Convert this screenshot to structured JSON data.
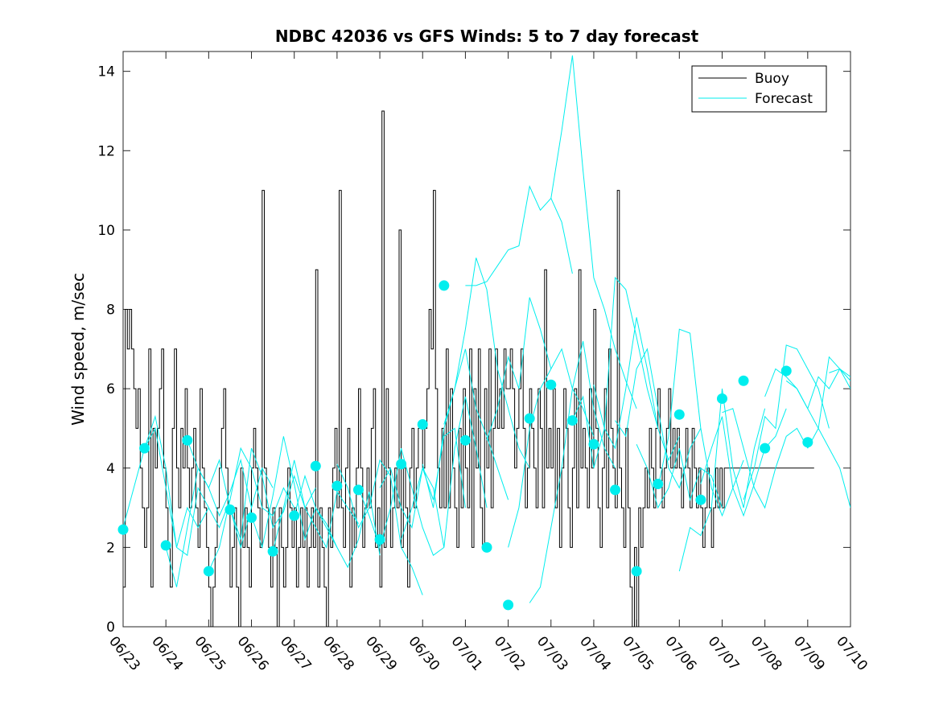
{
  "chart_data": {
    "type": "line",
    "title": "NDBC 42036 vs GFS Winds: 5 to 7 day forecast",
    "ylabel": "Wind speed, m/sec",
    "xlabel": "",
    "ylim": [
      0,
      14.5
    ],
    "yticks": [
      0,
      2,
      4,
      6,
      8,
      10,
      12,
      14
    ],
    "xlim": [
      0,
      17
    ],
    "xtick_labels": [
      "06/23",
      "06/24",
      "06/25",
      "06/26",
      "06/27",
      "06/28",
      "06/29",
      "06/30",
      "07/01",
      "07/02",
      "07/03",
      "07/04",
      "07/05",
      "07/06",
      "07/07",
      "07/08",
      "07/09",
      "07/10"
    ],
    "legend_position": "top-right",
    "legend": [
      "Buoy",
      "Forecast"
    ],
    "colors": {
      "buoy": "#000000",
      "forecast": "#00eeee"
    },
    "buoy_x": [
      0.0,
      0.05,
      0.1,
      0.15,
      0.2,
      0.25,
      0.3,
      0.35,
      0.4,
      0.45,
      0.5,
      0.55,
      0.6,
      0.65,
      0.7,
      0.75,
      0.8,
      0.85,
      0.9,
      0.95,
      1.0,
      1.05,
      1.1,
      1.15,
      1.2,
      1.25,
      1.3,
      1.35,
      1.4,
      1.45,
      1.5,
      1.55,
      1.6,
      1.65,
      1.7,
      1.75,
      1.8,
      1.85,
      1.9,
      1.95,
      2.0,
      2.05,
      2.1,
      2.15,
      2.2,
      2.25,
      2.3,
      2.35,
      2.4,
      2.45,
      2.5,
      2.55,
      2.6,
      2.65,
      2.7,
      2.75,
      2.8,
      2.85,
      2.9,
      2.95,
      3.0,
      3.05,
      3.1,
      3.15,
      3.2,
      3.25,
      3.3,
      3.35,
      3.4,
      3.45,
      3.5,
      3.55,
      3.6,
      3.65,
      3.7,
      3.75,
      3.8,
      3.85,
      3.9,
      3.95,
      4.0,
      4.05,
      4.1,
      4.15,
      4.2,
      4.25,
      4.3,
      4.35,
      4.4,
      4.45,
      4.5,
      4.55,
      4.6,
      4.65,
      4.7,
      4.75,
      4.8,
      4.85,
      4.9,
      4.95,
      5.0,
      5.05,
      5.1,
      5.15,
      5.2,
      5.25,
      5.3,
      5.35,
      5.4,
      5.45,
      5.5,
      5.55,
      5.6,
      5.65,
      5.7,
      5.75,
      5.8,
      5.85,
      5.9,
      5.95,
      6.0,
      6.05,
      6.1,
      6.15,
      6.2,
      6.25,
      6.3,
      6.35,
      6.4,
      6.45,
      6.5,
      6.55,
      6.6,
      6.65,
      6.7,
      6.75,
      6.8,
      6.85,
      6.9,
      6.95,
      7.0,
      7.05,
      7.1,
      7.15,
      7.2,
      7.25,
      7.3,
      7.35,
      7.4,
      7.45,
      7.5,
      7.55,
      7.6,
      7.65,
      7.7,
      7.75,
      7.8,
      7.85,
      7.9,
      7.95,
      8.0,
      8.05,
      8.1,
      8.15,
      8.2,
      8.25,
      8.3,
      8.35,
      8.4,
      8.45,
      8.5,
      8.55,
      8.6,
      8.65,
      8.7,
      8.75,
      8.8,
      8.85,
      8.9,
      8.95,
      9.0,
      9.05,
      9.1,
      9.15,
      9.2,
      9.25,
      9.3,
      9.35,
      9.4,
      9.45,
      9.5,
      9.55,
      9.6,
      9.65,
      9.7,
      9.75,
      9.8,
      9.85,
      9.9,
      9.95,
      10.0,
      10.05,
      10.1,
      10.15,
      10.2,
      10.25,
      10.3,
      10.35,
      10.4,
      10.45,
      10.5,
      10.55,
      10.6,
      10.65,
      10.7,
      10.75,
      10.8,
      10.85,
      10.9,
      10.95,
      11.0,
      11.05,
      11.1,
      11.15,
      11.2,
      11.25,
      11.3,
      11.35,
      11.4,
      11.45,
      11.5,
      11.55,
      11.6,
      11.65,
      11.7,
      11.75,
      11.8,
      11.85,
      11.9,
      11.95,
      12.0,
      12.05,
      12.1,
      12.15,
      12.2,
      12.25,
      12.3,
      12.35,
      12.4,
      12.45,
      12.5,
      12.55,
      12.6,
      12.65,
      12.7,
      12.75,
      12.8,
      12.85,
      12.9,
      12.95,
      13.0,
      13.05,
      13.1,
      13.15,
      13.2,
      13.25,
      13.3,
      13.35,
      13.4,
      13.45,
      13.5,
      13.55,
      13.6,
      13.65,
      13.7,
      13.75,
      13.8,
      13.85,
      13.9,
      13.95,
      14.0,
      14.05,
      14.1,
      14.15,
      14.2,
      14.25,
      14.3,
      14.35,
      14.4,
      14.45,
      14.5,
      14.55,
      14.6,
      14.65,
      14.7,
      14.75,
      14.8,
      14.85,
      14.9,
      14.95,
      15.0,
      15.05,
      15.1,
      15.15,
      15.2,
      15.25,
      15.3,
      15.35,
      15.4,
      15.45,
      15.5,
      15.55,
      15.6,
      15.65,
      15.7,
      15.75,
      15.8,
      15.85,
      15.9,
      15.95,
      16.0,
      16.05,
      16.1,
      16.15,
      16.2,
      16.25,
      16.3,
      16.35,
      16.4,
      16.45,
      16.5,
      16.55,
      16.6,
      16.65,
      16.7,
      16.75,
      16.8,
      16.85,
      16.9,
      16.95,
      17.0
    ],
    "buoy_y": [
      1,
      8,
      7,
      8,
      7,
      6,
      5,
      6,
      4,
      3,
      2,
      3,
      7,
      1,
      5,
      4,
      5,
      6,
      7,
      4,
      3,
      2,
      1,
      5,
      7,
      4,
      3,
      5,
      4,
      6,
      4,
      3,
      4,
      5,
      3,
      2,
      6,
      4,
      3,
      2,
      1,
      0,
      1,
      2,
      3,
      4,
      5,
      6,
      4,
      3,
      1,
      2,
      3,
      1,
      0,
      4,
      2,
      3,
      2,
      1,
      4,
      5,
      4,
      3,
      2,
      11,
      4,
      3,
      2,
      1,
      3,
      2,
      0,
      3,
      2,
      1,
      2,
      4,
      3,
      2,
      3,
      1,
      2,
      3,
      2,
      3,
      1,
      2,
      3,
      2,
      9,
      1,
      3,
      2,
      1,
      0,
      3,
      2,
      4,
      5,
      3,
      11,
      3,
      2,
      4,
      5,
      1,
      3,
      2,
      4,
      6,
      4,
      2,
      3,
      4,
      3,
      5,
      6,
      2,
      3,
      1,
      13,
      2,
      6,
      4,
      2,
      3,
      4,
      3,
      10,
      2,
      4,
      3,
      1,
      4,
      5,
      3,
      4,
      5,
      5,
      4,
      5,
      6,
      8,
      7,
      11,
      6,
      4,
      3,
      5,
      3,
      7,
      3,
      6,
      4,
      3,
      2,
      5,
      3,
      6,
      4,
      3,
      7,
      2,
      6,
      4,
      7,
      3,
      2,
      6,
      4,
      7,
      3,
      5,
      7,
      5,
      6,
      5,
      7,
      6,
      6,
      7,
      6,
      4,
      5,
      6,
      7,
      5,
      3,
      4,
      6,
      5,
      4,
      3,
      6,
      5,
      3,
      9,
      4,
      5,
      4,
      6,
      3,
      5,
      2,
      4,
      6,
      5,
      3,
      2,
      4,
      6,
      3,
      9,
      4,
      5,
      4,
      3,
      6,
      4,
      8,
      5,
      3,
      2,
      4,
      6,
      3,
      7,
      5,
      4,
      3,
      11,
      4,
      3,
      2,
      5,
      3,
      1,
      0,
      2,
      0,
      3,
      2,
      3,
      4,
      3,
      5,
      4,
      3,
      5,
      6,
      4,
      3,
      4,
      5,
      6,
      4,
      5,
      4,
      5,
      4,
      3,
      4,
      5,
      4,
      3,
      5,
      4,
      3,
      4,
      3,
      2,
      3,
      4,
      3,
      2,
      3,
      4,
      3,
      4,
      3,
      4,
      4,
      4,
      4,
      4,
      4,
      4,
      4,
      4,
      4,
      4,
      4,
      4,
      4,
      4,
      4,
      4,
      4,
      4,
      4,
      4,
      4,
      4,
      4,
      4,
      4,
      4,
      4,
      4,
      4,
      4,
      4,
      4,
      4,
      4,
      4,
      4,
      4,
      4,
      4,
      4,
      4,
      4
    ],
    "forecast_runs": [
      {
        "x": [
          0.0,
          0.25,
          0.5,
          0.75,
          1.0,
          1.25,
          1.5,
          1.75,
          2.0
        ],
        "y": [
          2.5,
          3.5,
          4.5,
          5.0,
          3.5,
          2.0,
          3.0,
          2.5,
          3.0
        ]
      },
      {
        "x": [
          0.5,
          0.75,
          1.0,
          1.25,
          1.5,
          1.75,
          2.0,
          2.25,
          2.5
        ],
        "y": [
          4.5,
          5.3,
          4.0,
          2.0,
          1.8,
          3.5,
          3.0,
          2.5,
          3.2
        ]
      },
      {
        "x": [
          1.0,
          1.25,
          1.5,
          1.75,
          2.0,
          2.25,
          2.5,
          2.75,
          3.0
        ],
        "y": [
          2.0,
          1.0,
          2.5,
          4.0,
          3.5,
          2.8,
          3.4,
          4.2,
          3.0
        ]
      },
      {
        "x": [
          1.5,
          1.75,
          2.0,
          2.25,
          2.5,
          2.75,
          3.0,
          3.25,
          3.5
        ],
        "y": [
          4.7,
          4.0,
          3.5,
          4.2,
          3.0,
          2.0,
          3.0,
          4.0,
          3.5
        ]
      },
      {
        "x": [
          2.0,
          2.25,
          2.5,
          2.75,
          3.0,
          3.25,
          3.5,
          3.75,
          4.0
        ],
        "y": [
          1.4,
          2.0,
          3.2,
          4.5,
          4.0,
          3.0,
          2.8,
          3.5,
          3.0
        ]
      },
      {
        "x": [
          2.5,
          2.75,
          3.0,
          3.25,
          3.5,
          3.75,
          4.0,
          4.25,
          4.5
        ],
        "y": [
          3.0,
          2.2,
          4.5,
          3.8,
          2.5,
          2.9,
          3.8,
          3.0,
          3.5
        ]
      },
      {
        "x": [
          3.0,
          3.25,
          3.5,
          3.75,
          4.0,
          4.25,
          4.5,
          4.75,
          5.0
        ],
        "y": [
          2.8,
          2.0,
          3.3,
          4.8,
          3.6,
          2.2,
          3.0,
          2.6,
          2.0
        ]
      },
      {
        "x": [
          3.5,
          3.75,
          4.0,
          4.25,
          4.5,
          4.75,
          5.0,
          5.25,
          5.5
        ],
        "y": [
          1.9,
          3.0,
          4.2,
          3.0,
          2.5,
          2.0,
          3.4,
          3.0,
          2.6
        ]
      },
      {
        "x": [
          4.0,
          4.25,
          4.5,
          4.75,
          5.0,
          5.25,
          5.5,
          5.75,
          6.0
        ],
        "y": [
          2.8,
          3.8,
          3.0,
          2.5,
          2.0,
          1.5,
          2.2,
          3.4,
          1.8
        ]
      },
      {
        "x": [
          5.0,
          5.25,
          5.5,
          5.75,
          6.0,
          6.25,
          6.5,
          6.75,
          7.0
        ],
        "y": [
          4.1,
          3.5,
          2.5,
          3.0,
          4.2,
          3.8,
          2.0,
          1.5,
          0.8
        ]
      },
      {
        "x": [
          5.5,
          5.75,
          6.0,
          6.25,
          6.5,
          6.75,
          7.0,
          7.25,
          7.5
        ],
        "y": [
          3.5,
          2.8,
          2.0,
          3.0,
          4.5,
          3.5,
          2.5,
          1.8,
          2.0
        ]
      },
      {
        "x": [
          6.0,
          6.25,
          6.5,
          6.75,
          7.0,
          7.25,
          7.5,
          7.75,
          8.0
        ],
        "y": [
          3.5,
          4.0,
          3.0,
          2.5,
          4.0,
          3.2,
          4.8,
          5.0,
          3.0
        ]
      },
      {
        "x": [
          6.5,
          6.75,
          7.0,
          7.25,
          7.5,
          7.75,
          8.0,
          8.25,
          8.5
        ],
        "y": [
          2.2,
          3.0,
          4.0,
          3.5,
          2.0,
          4.5,
          5.8,
          4.5,
          3.0
        ]
      },
      {
        "x": [
          7.0,
          7.25,
          7.5,
          7.75,
          8.0,
          8.25,
          8.5,
          8.75,
          9.0
        ],
        "y": [
          4.1,
          3.0,
          5.0,
          6.0,
          7.0,
          5.5,
          4.8,
          4.0,
          3.2
        ]
      },
      {
        "x": [
          7.5,
          7.75,
          8.0,
          8.25,
          8.5,
          8.75,
          9.0,
          9.25,
          9.5
        ],
        "y": [
          5.1,
          6.0,
          7.5,
          9.3,
          8.5,
          6.5,
          5.5,
          4.5,
          4.0
        ]
      },
      {
        "x": [
          8.0,
          8.25,
          8.5,
          8.75,
          9.0,
          9.25,
          9.5,
          9.75,
          10.0,
          10.25,
          10.5
        ],
        "y": [
          8.6,
          8.6,
          8.7,
          9.1,
          9.5,
          9.6,
          11.1,
          10.5,
          10.8,
          10.2,
          8.9
        ]
      },
      {
        "x": [
          8.5,
          8.75,
          9.0,
          9.25,
          9.5,
          9.75,
          10.0
        ],
        "y": [
          4.7,
          5.5,
          6.8,
          6.0,
          8.3,
          7.5,
          6.5
        ]
      },
      {
        "x": [
          9.0,
          9.25,
          9.5,
          9.75,
          10.0,
          10.25,
          10.5,
          10.75,
          11.0
        ],
        "y": [
          2.0,
          3.0,
          5.0,
          6.0,
          6.5,
          7.0,
          6.0,
          5.5,
          4.8
        ]
      },
      {
        "x": [
          9.5,
          9.75,
          10.0,
          10.25,
          10.5,
          10.75,
          11.0,
          11.25,
          11.5
        ],
        "y": [
          0.6,
          1.0,
          2.5,
          4.0,
          6.0,
          7.2,
          5.5,
          4.5,
          4.0
        ]
      },
      {
        "x": [
          10.0,
          10.25,
          10.5,
          10.75,
          11.0,
          11.25,
          11.5,
          11.75,
          12.0
        ],
        "y": [
          10.8,
          12.5,
          14.4,
          11.5,
          8.8,
          8.0,
          7.0,
          6.2,
          5.5
        ]
      },
      {
        "x": [
          10.5,
          10.75,
          11.0,
          11.25,
          11.5,
          11.75,
          12.0,
          12.25,
          12.5
        ],
        "y": [
          5.2,
          5.8,
          4.0,
          5.0,
          8.8,
          8.5,
          7.3,
          6.0,
          5.0
        ]
      },
      {
        "x": [
          11.0,
          11.25,
          11.5,
          11.75,
          12.0,
          12.25,
          12.5,
          12.75,
          13.0
        ],
        "y": [
          6.1,
          5.0,
          4.5,
          6.0,
          7.8,
          6.5,
          5.0,
          4.2,
          4.8
        ]
      },
      {
        "x": [
          11.5,
          11.75,
          12.0,
          12.25,
          12.5,
          12.75,
          13.0,
          13.25,
          13.5
        ],
        "y": [
          5.2,
          4.8,
          6.5,
          7.0,
          5.5,
          4.0,
          3.5,
          4.5,
          5.0
        ]
      },
      {
        "x": [
          12.0,
          12.25,
          12.5,
          12.75,
          13.0,
          13.25,
          13.5,
          13.75,
          14.0
        ],
        "y": [
          4.6,
          4.0,
          3.0,
          3.5,
          4.5,
          3.2,
          4.0,
          3.8,
          3.0
        ]
      },
      {
        "x": [
          12.5,
          12.75,
          13.0,
          13.25,
          13.5,
          13.75,
          14.0,
          14.25,
          14.5
        ],
        "y": [
          3.5,
          4.8,
          7.5,
          7.4,
          5.0,
          3.5,
          2.8,
          3.5,
          4.2
        ]
      },
      {
        "x": [
          13.0,
          13.25,
          13.5,
          13.75,
          14.0,
          14.25,
          14.5,
          14.75,
          15.0
        ],
        "y": [
          1.4,
          2.5,
          2.3,
          3.0,
          6.0,
          4.0,
          3.0,
          4.5,
          5.5
        ]
      },
      {
        "x": [
          13.5,
          13.75,
          14.0,
          14.25,
          14.5,
          14.75,
          15.0,
          15.25,
          15.5
        ],
        "y": [
          3.6,
          4.5,
          5.3,
          3.5,
          2.8,
          3.6,
          4.5,
          4.8,
          5.5
        ]
      },
      {
        "x": [
          14.0,
          14.25,
          14.5,
          14.75,
          15.0,
          15.25,
          15.5,
          15.75,
          16.0
        ],
        "y": [
          5.4,
          5.5,
          4.5,
          3.5,
          3.0,
          4.0,
          4.8,
          5.0,
          4.5
        ]
      },
      {
        "x": [
          14.5,
          14.75,
          15.0,
          15.25,
          15.5,
          15.75,
          16.0,
          16.25,
          16.5
        ],
        "y": [
          3.2,
          4.0,
          5.3,
          5.0,
          7.1,
          7.0,
          6.5,
          6.0,
          5.0
        ]
      },
      {
        "x": [
          15.0,
          15.25,
          15.5,
          15.75,
          16.0,
          16.25,
          16.5,
          16.75,
          17.0
        ],
        "y": [
          5.8,
          6.5,
          6.3,
          6.0,
          5.5,
          5.0,
          4.5,
          4.0,
          3.0
        ]
      },
      {
        "x": [
          15.5,
          15.75,
          16.0,
          16.25,
          16.5,
          16.75,
          17.0
        ],
        "y": [
          6.2,
          6.0,
          5.5,
          6.3,
          6.0,
          6.5,
          6.2
        ]
      },
      {
        "x": [
          16.0,
          16.25,
          16.5,
          16.75,
          17.0
        ],
        "y": [
          4.5,
          5.0,
          6.8,
          6.5,
          6.0
        ]
      },
      {
        "x": [
          16.5,
          16.75,
          17.0
        ],
        "y": [
          6.4,
          6.5,
          6.3
        ]
      },
      {
        "x": [
          17.0
        ],
        "y": [
          4.7
        ]
      }
    ],
    "forecast_dots_x": [
      0.0,
      0.5,
      1.0,
      1.5,
      2.0,
      2.5,
      3.0,
      3.5,
      4.0,
      4.5,
      5.0,
      5.5,
      6.0,
      6.5,
      7.0,
      7.5,
      8.0,
      8.5,
      9.0,
      9.5,
      10.0,
      10.5,
      11.0,
      11.5,
      12.0,
      12.5,
      13.0,
      13.5,
      14.0,
      14.5,
      15.0,
      15.5,
      16.0,
      16.5,
      17.0
    ],
    "forecast_dots_y": [
      2.45,
      4.5,
      2.05,
      4.7,
      1.4,
      2.95,
      2.75,
      1.9,
      2.8,
      4.05,
      3.55,
      3.45,
      2.2,
      4.1,
      5.1,
      8.6,
      4.7,
      2.0,
      0.55,
      5.25,
      6.1,
      5.2,
      4.6,
      3.45,
      1.4,
      3.6,
      5.35,
      3.2,
      5.75,
      6.2,
      4.5,
      6.45,
      4.65,
      null,
      null
    ]
  }
}
